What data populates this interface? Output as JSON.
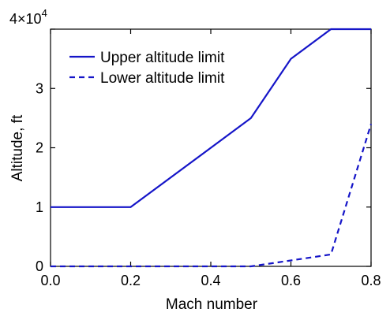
{
  "chart_data": {
    "type": "line",
    "xlabel": "Mach number",
    "ylabel": "Altitude, ft",
    "xlim": [
      0.0,
      0.8
    ],
    "ylim": [
      0,
      40000
    ],
    "grid": false,
    "legend_position": "top-left",
    "x_tick_labels": [
      "0.0",
      "0.2",
      "0.4",
      "0.6",
      "0.8"
    ],
    "y_tick_labels": [
      "0",
      "1",
      "2",
      "3",
      "4"
    ],
    "y_multiplier": {
      "base": "×10",
      "exponent": "4"
    },
    "series": [
      {
        "name": "Upper altitude limit",
        "style": "solid",
        "color": "#1515c8",
        "x": [
          0.0,
          0.2,
          0.5,
          0.6,
          0.7,
          0.8
        ],
        "y": [
          10000,
          10000,
          25000,
          35000,
          40000,
          40000
        ]
      },
      {
        "name": "Lower altitude limit",
        "style": "dashed",
        "color": "#1515c8",
        "x": [
          0.0,
          0.5,
          0.6,
          0.7,
          0.8
        ],
        "y": [
          0,
          0,
          1000,
          2000,
          24000
        ]
      }
    ]
  }
}
